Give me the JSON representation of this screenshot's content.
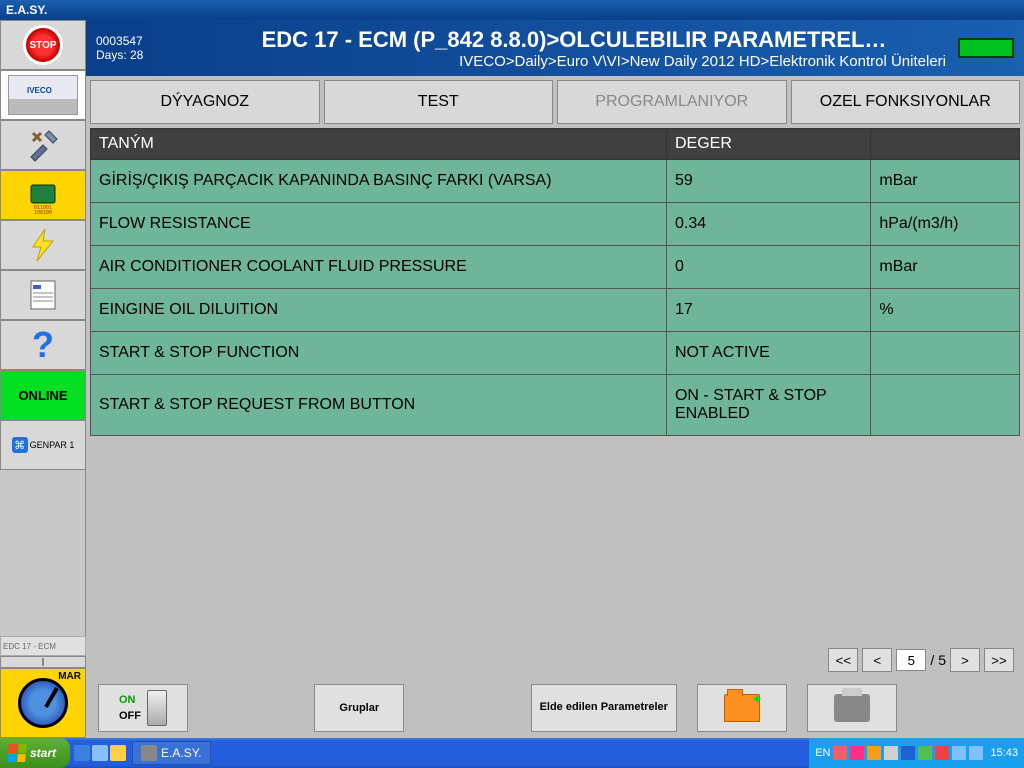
{
  "window_title": "E.A.SY.",
  "sidebar": {
    "stop_label": "STOP",
    "vehicle_brand": "IVECO",
    "online_label": "ONLINE",
    "bt_label": "GENPAR 1",
    "status_label": "EDC 17 - ECM",
    "mar_label": "MAR"
  },
  "header": {
    "session_id": "0003547",
    "days_label": "Days: 28",
    "title": "EDC 17 - ECM (P_842 8.8.0)>OLCULEBILIR PARAMETREL…",
    "breadcrumb": "IVECO>Daily>Euro V\\VI>New Daily 2012 HD>Elektronik Kontrol Üniteleri"
  },
  "tabs": [
    {
      "label": "DÝYAGNOZ",
      "disabled": false
    },
    {
      "label": "TEST",
      "disabled": false
    },
    {
      "label": "PROGRAMLANIYOR",
      "disabled": true
    },
    {
      "label": "OZEL FONKSIYONLAR",
      "disabled": false
    }
  ],
  "table": {
    "columns": [
      "TANÝM",
      "DEGER",
      ""
    ],
    "rows": [
      {
        "name": "GİRİŞ/ÇIKIŞ PARÇACIK KAPANINDA BASINÇ FARKI (VARSA)",
        "value": "59",
        "unit": "mBar"
      },
      {
        "name": "FLOW RESISTANCE",
        "value": "0.34",
        "unit": "hPa/(m3/h)"
      },
      {
        "name": "AIR CONDITIONER COOLANT FLUID PRESSURE",
        "value": "0",
        "unit": "mBar"
      },
      {
        "name": "EINGINE OIL DILUITION",
        "value": "17",
        "unit": "%"
      },
      {
        "name": "START & STOP FUNCTION",
        "value": "NOT ACTIVE",
        "unit": ""
      },
      {
        "name": "START & STOP REQUEST FROM BUTTON",
        "value": "ON - START & STOP ENABLED",
        "unit": ""
      }
    ],
    "colors": {
      "header_bg": "#404040",
      "row_bg": "#6fb59c"
    }
  },
  "pager": {
    "current": "5",
    "total": "5",
    "first": "<<",
    "prev": "<",
    "next": ">",
    "last": ">>",
    "sep": "/"
  },
  "bottom": {
    "on_label": "ON",
    "off_label": "OFF",
    "groups_label": "Gruplar",
    "obtained_label": "Elde edilen Parametreler"
  },
  "taskbar": {
    "start_label": "start",
    "app_task": "E.A.SY.",
    "lang": "EN",
    "clock": "15:43"
  },
  "colors": {
    "accent_blue": "#1a5fb0",
    "accent_green": "#00e020",
    "accent_yellow": "#ffd400"
  }
}
